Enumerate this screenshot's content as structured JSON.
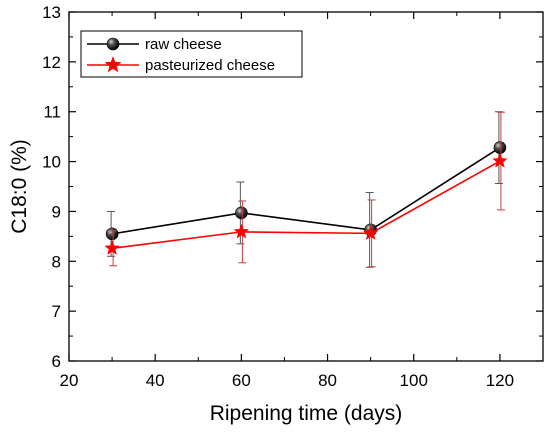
{
  "chart_data": {
    "type": "line",
    "title": "",
    "xlabel": "Ripening time (days)",
    "ylabel": "C18:0 (%)",
    "xlim": [
      20,
      130
    ],
    "ylim": [
      6,
      13
    ],
    "x_ticks": [
      "20",
      "40",
      "60",
      "80",
      "100",
      "120"
    ],
    "y_ticks": [
      "6",
      "7",
      "8",
      "9",
      "10",
      "11",
      "12",
      "13"
    ],
    "grid": false,
    "legend_position": "top-left",
    "series": [
      {
        "name": "raw cheese",
        "color": "#000000",
        "marker": "sphere",
        "x": [
          30,
          60,
          90,
          120
        ],
        "y": [
          8.55,
          8.97,
          8.63,
          10.28
        ],
        "error": [
          0.45,
          0.62,
          0.75,
          0.72
        ]
      },
      {
        "name": "pasteurized cheese",
        "color": "#ff0000",
        "marker": "star",
        "x": [
          30,
          60,
          90,
          120
        ],
        "y": [
          8.26,
          8.59,
          8.56,
          10.01
        ],
        "error": [
          0.35,
          0.62,
          0.67,
          0.98
        ]
      }
    ]
  }
}
